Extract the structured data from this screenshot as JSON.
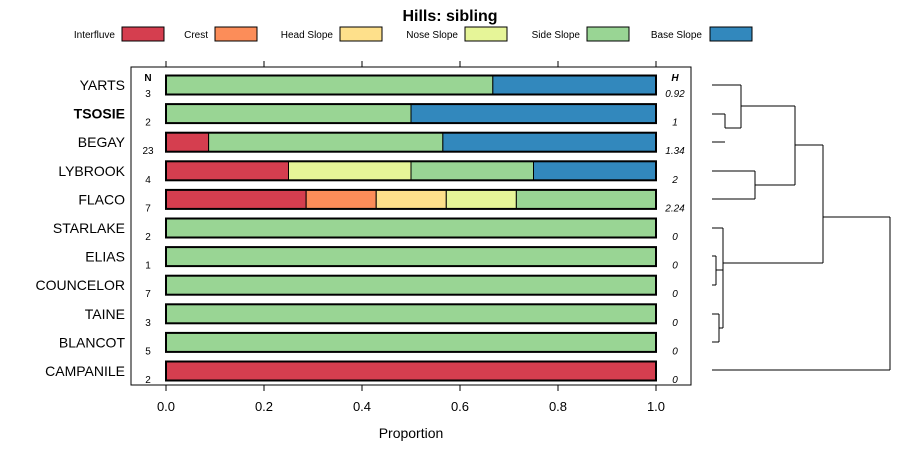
{
  "chart_data": {
    "type": "bar",
    "stacked": true,
    "orientation": "horizontal",
    "title": "Hills: sibling",
    "xlabel": "Proportion",
    "ylabel": "",
    "xlim": [
      0,
      1
    ],
    "x_ticks": [
      "0.0",
      "0.2",
      "0.4",
      "0.6",
      "0.8",
      "1.0"
    ],
    "x_tick_values": [
      0,
      0.2,
      0.4,
      0.6,
      0.8,
      1.0
    ],
    "n_header": "N",
    "h_header": "H",
    "bold_category": "TSOSIE",
    "legend": [
      {
        "name": "Interfluve",
        "color": "#D53E4F"
      },
      {
        "name": "Crest",
        "color": "#FC8D59"
      },
      {
        "name": "Head Slope",
        "color": "#FEE08B"
      },
      {
        "name": "Nose Slope",
        "color": "#E6F598"
      },
      {
        "name": "Side Slope",
        "color": "#99D594"
      },
      {
        "name": "Base Slope",
        "color": "#3288BD"
      }
    ],
    "categories": [
      "YARTS",
      "TSOSIE",
      "BEGAY",
      "LYBROOK",
      "FLACO",
      "STARLAKE",
      "ELIAS",
      "COUNCELOR",
      "TAINE",
      "BLANCOT",
      "CAMPANILE"
    ],
    "n": [
      "3",
      "2",
      "23",
      "4",
      "7",
      "2",
      "1",
      "7",
      "3",
      "5",
      "2"
    ],
    "h": [
      "0.92",
      "1",
      "1.34",
      "2",
      "2.24",
      "0",
      "0",
      "0",
      "0",
      "0",
      "0"
    ],
    "series": [
      {
        "name": "Interfluve",
        "values": [
          0,
          0,
          0.087,
          0.25,
          0.286,
          0,
          0,
          0,
          0,
          0,
          1
        ]
      },
      {
        "name": "Crest",
        "values": [
          0,
          0,
          0,
          0,
          0.143,
          0,
          0,
          0,
          0,
          0,
          0
        ]
      },
      {
        "name": "Head Slope",
        "values": [
          0,
          0,
          0,
          0,
          0.143,
          0,
          0,
          0,
          0,
          0,
          0
        ]
      },
      {
        "name": "Nose Slope",
        "values": [
          0,
          0,
          0,
          0.25,
          0.143,
          0,
          0,
          0,
          0,
          0,
          0
        ]
      },
      {
        "name": "Side Slope",
        "values": [
          0.667,
          0.5,
          0.478,
          0.25,
          0.286,
          1,
          1,
          1,
          1,
          1,
          0
        ]
      },
      {
        "name": "Base Slope",
        "values": [
          0.333,
          0.5,
          0.435,
          0.25,
          0,
          0,
          0,
          0,
          0,
          0,
          0
        ]
      }
    ]
  }
}
